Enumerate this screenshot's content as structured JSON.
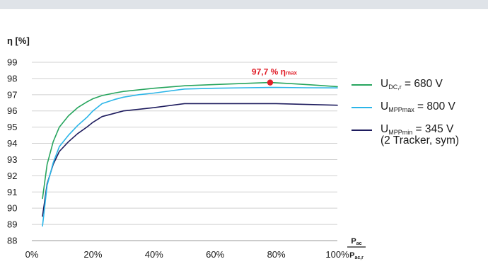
{
  "chart_data": {
    "type": "line",
    "ylabel": "η [%]",
    "ylim": [
      88,
      99
    ],
    "yticks": [
      "88",
      "89",
      "90",
      "91",
      "92",
      "93",
      "94",
      "95",
      "96",
      "97",
      "98",
      "99"
    ],
    "xlim": [
      0,
      100
    ],
    "xticks": [
      "0%",
      "20%",
      "40%",
      "60%",
      "80%",
      "100%"
    ],
    "xlabel_numerator": "P",
    "xlabel_numerator_sub": "ac",
    "xlabel_denominator": "P",
    "xlabel_denominator_sub": "ac,r",
    "grid": true,
    "legend_position": "right",
    "series": [
      {
        "name": "U_DC,r = 680 V",
        "name_main": "U",
        "name_sub": "DC,r",
        "name_value": " = 680 V",
        "color": "#27a55e",
        "x": [
          3.5,
          5,
          7,
          9,
          12,
          15,
          18,
          20,
          23,
          27,
          30,
          35,
          40,
          50,
          60,
          70,
          78,
          85,
          92,
          100
        ],
        "y": [
          90.6,
          92.7,
          94.1,
          95.0,
          95.7,
          96.2,
          96.55,
          96.75,
          96.95,
          97.1,
          97.2,
          97.3,
          97.4,
          97.55,
          97.63,
          97.7,
          97.75,
          97.68,
          97.6,
          97.5
        ]
      },
      {
        "name": "U_MPPmax = 800 V",
        "name_main": "U",
        "name_sub": "MPPmax",
        "name_value": " = 800 V",
        "color": "#2bb5e8",
        "x": [
          3.5,
          5,
          7,
          9,
          12,
          15,
          18,
          20,
          23,
          27,
          30,
          35,
          40,
          50,
          60,
          70,
          80,
          90,
          100
        ],
        "y": [
          88.9,
          91.4,
          92.8,
          93.8,
          94.5,
          95.1,
          95.6,
          96.0,
          96.45,
          96.7,
          96.85,
          97.0,
          97.1,
          97.35,
          97.4,
          97.43,
          97.45,
          97.43,
          97.42
        ]
      },
      {
        "name": "U_MPPmin = 345 V (2 Tracker, sym)",
        "name_main": "U",
        "name_sub": "MPPmin",
        "name_value": " = 345 V",
        "name_note": "(2 Tracker, sym)",
        "color": "#1e1c5e",
        "x": [
          3.5,
          5,
          7,
          9,
          12,
          15,
          18,
          20,
          23,
          27,
          30,
          35,
          40,
          50,
          60,
          70,
          80,
          90,
          100
        ],
        "y": [
          89.5,
          91.5,
          92.7,
          93.5,
          94.1,
          94.6,
          95.0,
          95.3,
          95.65,
          95.85,
          96.0,
          96.1,
          96.2,
          96.45,
          96.45,
          96.45,
          96.45,
          96.4,
          96.35
        ]
      }
    ],
    "annotation": {
      "text_value": "97,7 % ",
      "text_symbol": "η",
      "text_sub": "max",
      "x": 78,
      "y": 97.75,
      "color": "#e0202a"
    }
  }
}
